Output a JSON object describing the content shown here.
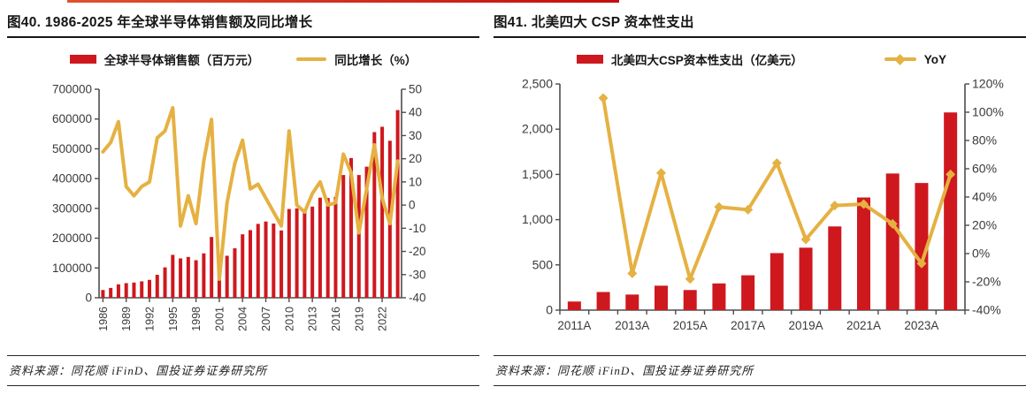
{
  "page": {
    "top_strip_color": "#c40d10",
    "background": "#ffffff"
  },
  "colors": {
    "bar_red": "#ce181e",
    "line_yellow": "#e5b142",
    "axis": "#4d4d4d",
    "tick_text": "#3a3a3a"
  },
  "figures": [
    {
      "title": "图40. 1986-2025 年全球半导体销售额及同比增长",
      "source": "资料来源：同花顺 iFinD、国投证券证券研究所",
      "legend": [
        {
          "label": "全球半导体销售额（百万元）",
          "swatch": "bar"
        },
        {
          "label": "同比增长（%）",
          "swatch": "line"
        }
      ]
    },
    {
      "title": "图41. 北美四大 CSP 资本性支出",
      "source": "资料来源：同花顺 iFinD、国投证券证券研究所",
      "legend": [
        {
          "label": "北美四大CSP资本性支出（亿美元）",
          "swatch": "bar"
        },
        {
          "label": "YoY",
          "swatch": "line-diamond"
        }
      ]
    }
  ],
  "chart_data": [
    {
      "type": "bar",
      "title": "图40. 1986-2025 年全球半导体销售额及同比增长",
      "categories": [
        "1986",
        "1987",
        "1988",
        "1989",
        "1990",
        "1991",
        "1992",
        "1993",
        "1994",
        "1995",
        "1996",
        "1997",
        "1998",
        "1999",
        "2000",
        "2001",
        "2002",
        "2003",
        "2004",
        "2005",
        "2006",
        "2007",
        "2008",
        "2009",
        "2010",
        "2011",
        "2012",
        "2013",
        "2014",
        "2015",
        "2016",
        "2017",
        "2018",
        "2019",
        "2020",
        "2021",
        "2022",
        "2023",
        "2024"
      ],
      "series": [
        {
          "name": "全球半导体销售额（百万元）",
          "type": "bar",
          "axis": "left",
          "color": "#ce181e",
          "values": [
            26000,
            33000,
            45000,
            49000,
            51000,
            55000,
            60000,
            77000,
            102000,
            144000,
            132000,
            137000,
            126000,
            149000,
            204000,
            139000,
            141000,
            166000,
            213000,
            227000,
            248000,
            256000,
            249000,
            226000,
            298000,
            300000,
            292000,
            306000,
            336000,
            335000,
            339000,
            412000,
            469000,
            412000,
            440000,
            556000,
            574000,
            527000,
            630000
          ]
        },
        {
          "name": "同比增长（%）",
          "type": "line",
          "axis": "right",
          "color": "#e5b142",
          "values": [
            23,
            27,
            36,
            8,
            4,
            8,
            10,
            29,
            32,
            42,
            -9,
            4,
            -8,
            19,
            37,
            -32,
            1,
            18,
            28,
            7,
            9,
            3,
            -3,
            -9,
            32,
            0,
            -3,
            5,
            10,
            0,
            1,
            22,
            14,
            -12,
            7,
            26,
            3,
            -8,
            19
          ]
        }
      ],
      "left_axis": {
        "min": 0,
        "max": 700000,
        "ticks": [
          "700000",
          "600000",
          "500000",
          "400000",
          "300000",
          "200000",
          "100000",
          "0"
        ]
      },
      "right_axis": {
        "min": -40,
        "max": 50,
        "ticks": [
          "50",
          "40",
          "30",
          "20",
          "10",
          "0",
          "-10",
          "-20",
          "-30",
          "-40"
        ]
      },
      "x_ticks": [
        "1986",
        "1989",
        "1992",
        "1995",
        "1998",
        "2001",
        "2004",
        "2007",
        "2010",
        "2013",
        "2016",
        "2019",
        "2022"
      ],
      "legend_position": "top",
      "grid": false
    },
    {
      "type": "bar",
      "title": "图41. 北美四大 CSP 资本性支出",
      "categories": [
        "2011A",
        "2012A",
        "2013A",
        "2014A",
        "2015A",
        "2016A",
        "2017A",
        "2018A",
        "2019A",
        "2020A",
        "2021A",
        "2022A",
        "2023A",
        "2024A"
      ],
      "series": [
        {
          "name": "北美四大CSP资本性支出（亿美元）",
          "type": "bar",
          "axis": "left",
          "color": "#ce181e",
          "values": [
            95,
            200,
            172,
            270,
            222,
            295,
            385,
            630,
            690,
            925,
            1245,
            1510,
            1405,
            2185
          ]
        },
        {
          "name": "YoY",
          "type": "line",
          "axis": "right",
          "color": "#e5b142",
          "marker": "diamond",
          "values": [
            null,
            110,
            -14,
            57,
            -18,
            33,
            31,
            64,
            10,
            34,
            35,
            21,
            -7,
            56
          ]
        }
      ],
      "left_axis": {
        "min": 0,
        "max": 2500,
        "ticks": [
          "2,500",
          "2,000",
          "1,500",
          "1,000",
          "500",
          "0"
        ]
      },
      "right_axis": {
        "min": -40,
        "max": 120,
        "ticks": [
          "120%",
          "100%",
          "80%",
          "60%",
          "40%",
          "20%",
          "0%",
          "-20%",
          "-40%"
        ]
      },
      "x_ticks": [
        "2011A",
        "2013A",
        "2015A",
        "2017A",
        "2019A",
        "2021A",
        "2023A"
      ],
      "legend_position": "top",
      "grid": false
    }
  ]
}
